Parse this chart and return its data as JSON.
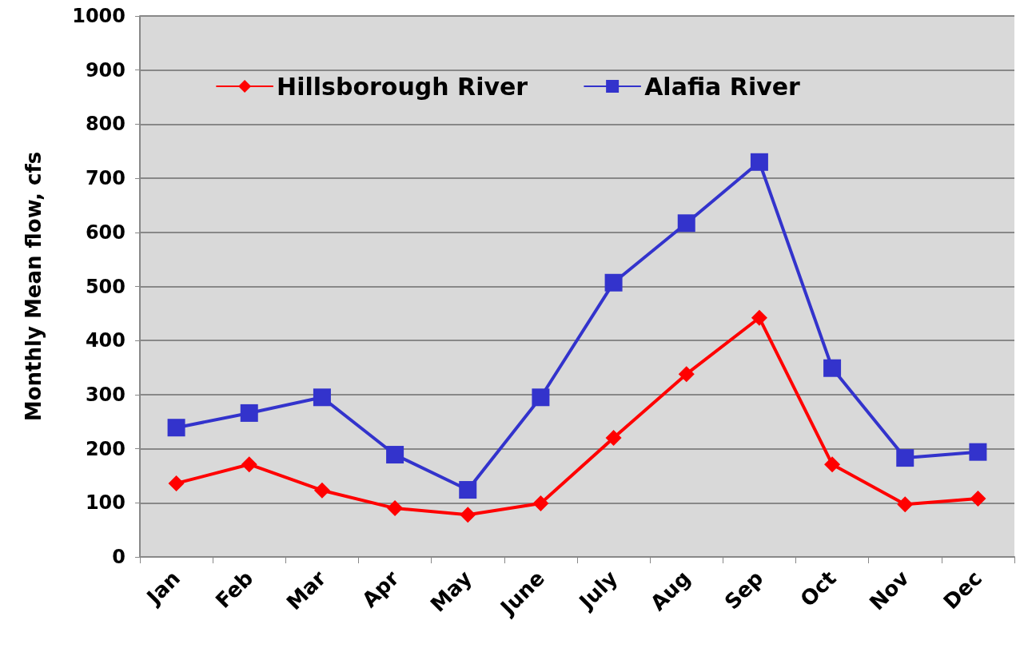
{
  "chart_data": {
    "type": "line",
    "ylabel": "Monthly Mean flow, cfs",
    "categories": [
      "Jan",
      "Feb",
      "Mar",
      "Apr",
      "May",
      "June",
      "July",
      "Aug",
      "Sep",
      "Oct",
      "Nov",
      "Dec"
    ],
    "series": [
      {
        "name": "Hillsborough River",
        "color": "#ff0000",
        "marker": "diamond",
        "values": [
          136,
          171,
          123,
          90,
          78,
          99,
          220,
          338,
          442,
          171,
          97,
          108
        ]
      },
      {
        "name": "Alafia River",
        "color": "#3333cc",
        "marker": "square",
        "values": [
          239,
          266,
          295,
          189,
          124,
          295,
          507,
          617,
          730,
          349,
          183,
          194
        ]
      }
    ],
    "ylim": [
      0,
      1000
    ],
    "yticks": [
      0,
      100,
      200,
      300,
      400,
      500,
      600,
      700,
      800,
      900,
      1000
    ],
    "grid": "y",
    "legend": "top",
    "line_style": "solid"
  }
}
